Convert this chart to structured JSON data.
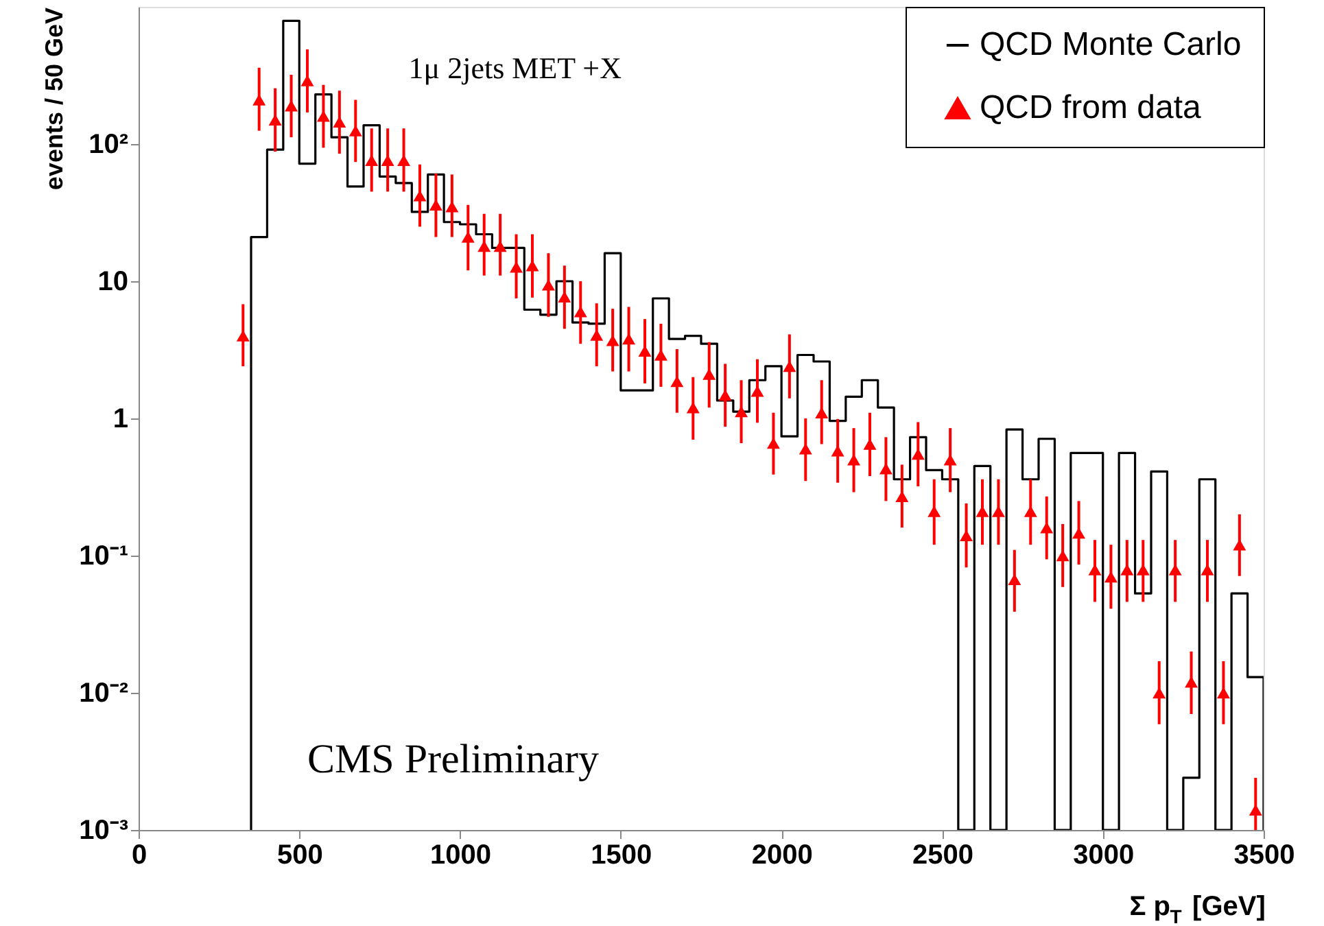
{
  "chart_data": {
    "type": "histogram",
    "xlabel": "Σ p$_{T}$ [GeV]",
    "ylabel": "events / 50 GeV",
    "xlim": [
      0,
      3500
    ],
    "ylim": [
      0.001,
      1000
    ],
    "xticks": [
      0,
      500,
      1000,
      1500,
      2000,
      2500,
      3000,
      3500
    ],
    "yticks": [
      {
        "value": 0.001,
        "label": "10⁻³"
      },
      {
        "value": 0.01,
        "label": "10⁻²"
      },
      {
        "value": 0.1,
        "label": "10⁻¹"
      },
      1,
      10,
      {
        "value": 100,
        "label": "10²"
      }
    ],
    "log": "y",
    "grid": false,
    "legend": "top right",
    "annotations": [
      "1μ 2jets MET +X",
      "CMS Preliminary"
    ],
    "series": [
      {
        "name": "QCD Monte Carlo",
        "type": "histogram",
        "color": "#000000",
        "bins": [
          350,
          400,
          450,
          500,
          550,
          600,
          650,
          700,
          750,
          800,
          850,
          900,
          950,
          1000,
          1050,
          1100,
          1150,
          1200,
          1250,
          1300,
          1350,
          1400,
          1450,
          1500,
          1550,
          1600,
          1650,
          1700,
          1750,
          1800,
          1850,
          1900,
          1950,
          2000,
          2050,
          2100,
          2150,
          2200,
          2250,
          2300,
          2350,
          2400,
          2450,
          2500,
          2550,
          2600,
          2650,
          2700,
          2750,
          2800,
          2850,
          2900,
          2950,
          3000,
          3050,
          3100,
          3150,
          3200,
          3250,
          3300,
          3350,
          3400,
          3450,
          3500
        ],
        "values": [
          21,
          91,
          790,
          72,
          230,
          112,
          49,
          137,
          58,
          52,
          32,
          60,
          27,
          26,
          22,
          17.5,
          17.5,
          6.2,
          5.7,
          10,
          5,
          4.9,
          16,
          1.6,
          1.6,
          7.5,
          3.8,
          4.0,
          3.5,
          1.35,
          1.12,
          1.9,
          2.4,
          0.74,
          2.9,
          2.6,
          0.96,
          1.44,
          1.9,
          1.2,
          0.36,
          0.73,
          0.42,
          0.36,
          null,
          0.45,
          null,
          0.83,
          0.36,
          0.71,
          null,
          0.56,
          0.56,
          null,
          0.56,
          0.053,
          0.41,
          null,
          0.0024,
          0.36,
          null,
          0.053,
          0.013
        ]
      },
      {
        "name": "QCD from data",
        "type": "scatter",
        "marker": "triangle",
        "color": "#ff0000",
        "x": [
          325,
          375,
          425,
          475,
          525,
          575,
          625,
          675,
          725,
          775,
          825,
          875,
          925,
          975,
          1025,
          1075,
          1125,
          1175,
          1225,
          1275,
          1325,
          1375,
          1425,
          1475,
          1525,
          1575,
          1625,
          1675,
          1725,
          1775,
          1825,
          1875,
          1925,
          1975,
          2025,
          2075,
          2125,
          2175,
          2225,
          2275,
          2325,
          2375,
          2425,
          2475,
          2525,
          2575,
          2625,
          2675,
          2725,
          2775,
          2825,
          2875,
          2925,
          2975,
          3025,
          3075,
          3125,
          3175,
          3225,
          3275,
          3325,
          3375,
          3425,
          3475
        ],
        "values": [
          4,
          210,
          150,
          190,
          290,
          160,
          145,
          125,
          76,
          76,
          76,
          42,
          36,
          35,
          21,
          18,
          18,
          12.7,
          13,
          9.4,
          7.7,
          6,
          4.05,
          3.7,
          3.8,
          3.1,
          2.9,
          1.86,
          1.2,
          2.1,
          1.48,
          1.12,
          1.58,
          0.66,
          2.4,
          0.6,
          1.1,
          0.58,
          0.5,
          0.65,
          0.43,
          0.27,
          0.55,
          0.21,
          0.5,
          0.14,
          0.21,
          0.21,
          0.067,
          0.21,
          0.16,
          0.1,
          0.146,
          0.079,
          0.07,
          0.079,
          0.079,
          0.01,
          0.079,
          0.012,
          0.079,
          0.01,
          0.12,
          0.0014
        ],
        "errors": [
          [
            2.4,
            6.8
          ],
          [
            125,
            360
          ],
          [
            88,
            255
          ],
          [
            112,
            320
          ],
          [
            170,
            490
          ],
          [
            94,
            270
          ],
          [
            85,
            245
          ],
          [
            74,
            210
          ],
          [
            45,
            130
          ],
          [
            45,
            130
          ],
          [
            45,
            130
          ],
          [
            25,
            71
          ],
          [
            21,
            61
          ],
          [
            21,
            60
          ],
          [
            12,
            36
          ],
          [
            11,
            31
          ],
          [
            11,
            31
          ],
          [
            7.5,
            22
          ],
          [
            7.6,
            22
          ],
          [
            5.5,
            16
          ],
          [
            4.5,
            13
          ],
          [
            3.5,
            10
          ],
          [
            2.4,
            6.9
          ],
          [
            2.2,
            6.3
          ],
          [
            2.2,
            6.5
          ],
          [
            1.8,
            5.3
          ],
          [
            1.7,
            4.9
          ],
          [
            1.1,
            3.2
          ],
          [
            0.7,
            2.0
          ],
          [
            1.2,
            3.6
          ],
          [
            0.87,
            2.5
          ],
          [
            0.66,
            1.9
          ],
          [
            0.93,
            2.7
          ],
          [
            0.39,
            1.1
          ],
          [
            1.4,
            4.1
          ],
          [
            0.35,
            1.0
          ],
          [
            0.65,
            1.9
          ],
          [
            0.34,
            0.99
          ],
          [
            0.29,
            0.85
          ],
          [
            0.38,
            1.1
          ],
          [
            0.25,
            0.73
          ],
          [
            0.16,
            0.46
          ],
          [
            0.32,
            0.94
          ],
          [
            0.12,
            0.36
          ],
          [
            0.29,
            0.85
          ],
          [
            0.082,
            0.24
          ],
          [
            0.12,
            0.36
          ],
          [
            0.12,
            0.36
          ],
          [
            0.039,
            0.11
          ],
          [
            0.12,
            0.36
          ],
          [
            0.094,
            0.27
          ],
          [
            0.059,
            0.17
          ],
          [
            0.086,
            0.25
          ],
          [
            0.046,
            0.13
          ],
          [
            0.041,
            0.12
          ],
          [
            0.046,
            0.13
          ],
          [
            0.046,
            0.13
          ],
          [
            0.0059,
            0.017
          ],
          [
            0.046,
            0.13
          ],
          [
            0.007,
            0.02
          ],
          [
            0.046,
            0.13
          ],
          [
            0.0059,
            0.017
          ],
          [
            0.071,
            0.2
          ],
          [
            0.001,
            0.0024
          ]
        ]
      }
    ]
  }
}
